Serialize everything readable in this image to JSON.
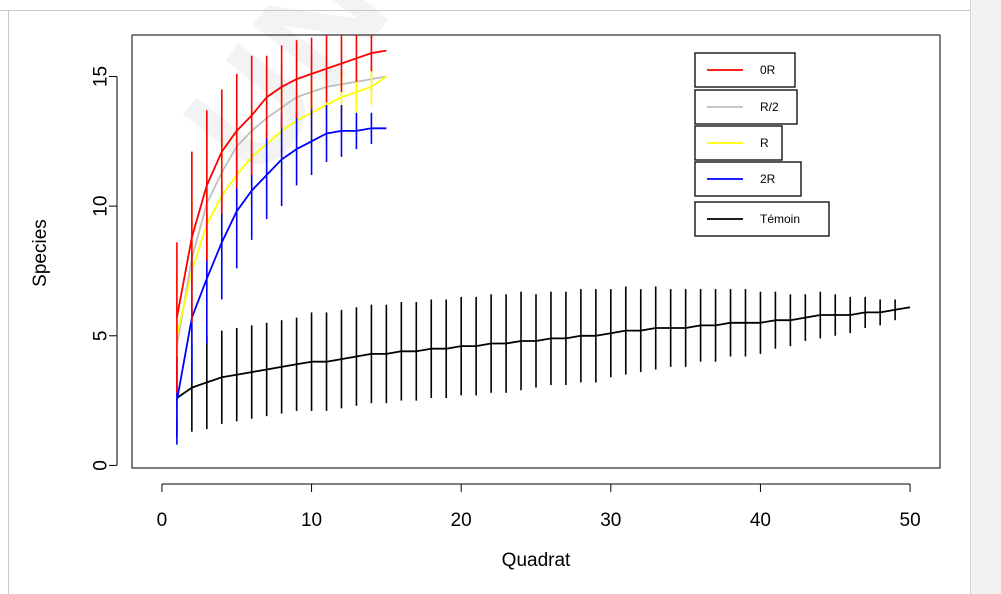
{
  "watermark": "UNDER PEER",
  "chart_data": {
    "type": "line",
    "title": "",
    "xlabel": "Quadrat",
    "ylabel": "Species",
    "xlim": [
      -2,
      52
    ],
    "ylim": [
      -0.1,
      16.6
    ],
    "xticks": [
      0,
      10,
      20,
      30,
      40,
      50
    ],
    "yticks": [
      0,
      5,
      10,
      15
    ],
    "grid": false,
    "legend_position": "top-right",
    "series": [
      {
        "name": "0R",
        "color": "#ff0000",
        "x": [
          1,
          2,
          3,
          4,
          5,
          6,
          7,
          8,
          9,
          10,
          11,
          12,
          13,
          14,
          15
        ],
        "y": [
          5.7,
          8.8,
          10.8,
          12.1,
          12.9,
          13.5,
          14.2,
          14.6,
          14.9,
          15.1,
          15.3,
          15.5,
          15.7,
          15.9,
          16.0
        ],
        "err": [
          2.9,
          3.3,
          2.9,
          2.4,
          2.2,
          2.3,
          1.6,
          1.6,
          1.5,
          1.4,
          1.3,
          1.1,
          0.9,
          0.7,
          0.0
        ]
      },
      {
        "name": "R/2",
        "color": "#bebebe",
        "x": [
          1,
          2,
          3,
          4,
          5,
          6,
          7,
          8,
          9,
          10,
          11,
          12,
          13,
          14,
          15
        ],
        "y": [
          4.6,
          8.0,
          10.1,
          11.3,
          12.3,
          12.9,
          13.4,
          13.8,
          14.2,
          14.4,
          14.6,
          14.7,
          14.8,
          14.9,
          15.0
        ],
        "err": [
          2.8,
          4.1,
          3.3,
          3.0,
          2.5,
          2.1,
          1.9,
          1.7,
          1.5,
          1.3,
          1.2,
          1.1,
          0.9,
          0.6,
          0.0
        ]
      },
      {
        "name": "R",
        "color": "#ffff00",
        "x": [
          1,
          2,
          3,
          4,
          5,
          6,
          7,
          8,
          9,
          10,
          11,
          12,
          13,
          14,
          15
        ],
        "y": [
          5.0,
          7.5,
          9.3,
          10.4,
          11.2,
          11.9,
          12.4,
          12.9,
          13.3,
          13.6,
          13.9,
          14.2,
          14.4,
          14.6,
          15.0
        ],
        "err": [
          2.5,
          2.8,
          2.7,
          2.4,
          2.2,
          1.9,
          1.8,
          1.6,
          1.4,
          1.3,
          1.1,
          1.0,
          0.9,
          0.7,
          0.0
        ]
      },
      {
        "name": "2R",
        "color": "#0000ff",
        "x": [
          1,
          2,
          3,
          4,
          5,
          6,
          7,
          8,
          9,
          10,
          11,
          12,
          13,
          14,
          15
        ],
        "y": [
          2.5,
          5.7,
          7.2,
          8.6,
          9.8,
          10.6,
          11.2,
          11.8,
          12.2,
          12.5,
          12.8,
          12.9,
          12.9,
          13.0,
          13.0
        ],
        "err": [
          1.7,
          2.5,
          2.5,
          2.2,
          2.2,
          1.9,
          1.7,
          1.8,
          1.4,
          1.3,
          1.1,
          1.0,
          0.7,
          0.6,
          0.0
        ]
      },
      {
        "name": "Témoin",
        "color": "#000000",
        "x": [
          1,
          2,
          3,
          4,
          5,
          6,
          7,
          8,
          9,
          10,
          11,
          12,
          13,
          14,
          15,
          16,
          17,
          18,
          19,
          20,
          21,
          22,
          23,
          24,
          25,
          26,
          27,
          28,
          29,
          30,
          31,
          32,
          33,
          34,
          35,
          36,
          37,
          38,
          39,
          40,
          41,
          42,
          43,
          44,
          45,
          46,
          47,
          48,
          49,
          50
        ],
        "y": [
          2.6,
          3.0,
          3.2,
          3.4,
          3.5,
          3.6,
          3.7,
          3.8,
          3.9,
          4.0,
          4.0,
          4.1,
          4.2,
          4.3,
          4.3,
          4.4,
          4.4,
          4.5,
          4.5,
          4.6,
          4.6,
          4.7,
          4.7,
          4.8,
          4.8,
          4.9,
          4.9,
          5.0,
          5.0,
          5.1,
          5.2,
          5.2,
          5.3,
          5.3,
          5.3,
          5.4,
          5.4,
          5.5,
          5.5,
          5.5,
          5.6,
          5.6,
          5.7,
          5.8,
          5.8,
          5.8,
          5.9,
          5.9,
          6.0,
          6.1
        ],
        "err": [
          1.5,
          1.7,
          1.8,
          1.8,
          1.8,
          1.8,
          1.8,
          1.8,
          1.8,
          1.9,
          1.9,
          1.9,
          1.9,
          1.9,
          1.9,
          1.9,
          1.9,
          1.9,
          1.9,
          1.9,
          1.9,
          1.9,
          1.9,
          1.9,
          1.8,
          1.8,
          1.8,
          1.8,
          1.8,
          1.7,
          1.7,
          1.6,
          1.6,
          1.5,
          1.5,
          1.4,
          1.4,
          1.3,
          1.3,
          1.2,
          1.1,
          1.0,
          0.9,
          0.9,
          0.8,
          0.7,
          0.6,
          0.5,
          0.4,
          0.0
        ]
      }
    ]
  }
}
